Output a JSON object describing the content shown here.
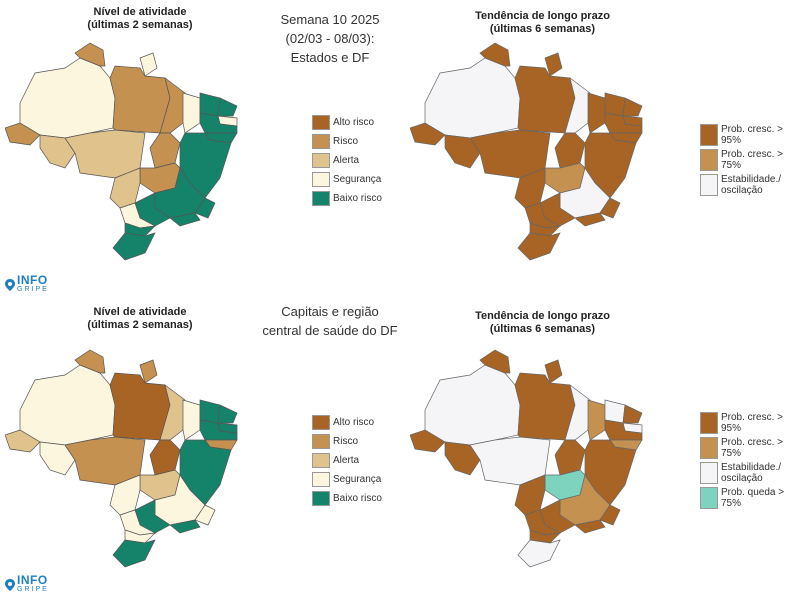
{
  "center": {
    "week_title_line1": "Semana 10 2025",
    "week_title_line2": "(02/03 - 08/03):",
    "week_title_line3": "Estados e DF",
    "bottom_title_line1": "Capitais e região",
    "bottom_title_line2": "central de saúde do DF"
  },
  "panels": {
    "top_left": {
      "title_line1": "Nível de atividade",
      "title_line2": "(últimas 2 semanas)"
    },
    "top_right": {
      "title_line1": "Tendência de longo prazo",
      "title_line2": "(últimas 6 semanas)"
    },
    "bottom_left": {
      "title_line1": "Nível de atividade",
      "title_line2": "(últimas 2 semanas)"
    },
    "bottom_right": {
      "title_line1": "Tendência de longo prazo",
      "title_line2": "(últimas 6 semanas)"
    }
  },
  "risk_legend": [
    {
      "label": "Alto risco",
      "color": "#a86424"
    },
    {
      "label": "Risco",
      "color": "#c49150"
    },
    {
      "label": "Alerta",
      "color": "#e0c28c"
    },
    {
      "label": "Segurança",
      "color": "#fdf6de"
    },
    {
      "label": "Baixo risco",
      "color": "#14836a"
    }
  ],
  "trend_legend_top": [
    {
      "label": "Prob. cresc. > 95%",
      "color": "#a86424"
    },
    {
      "label": "Prob. cresc. > 75%",
      "color": "#c49150"
    },
    {
      "label": "Estabilidade./ oscilação",
      "color": "#f5f5f7"
    }
  ],
  "trend_legend_bottom": [
    {
      "label": "Prob. cresc. > 95%",
      "color": "#a86424"
    },
    {
      "label": "Prob. cresc. > 75%",
      "color": "#c49150"
    },
    {
      "label": "Estabilidade./ oscilação",
      "color": "#f5f5f7"
    },
    {
      "label": "Prob. queda > 75%",
      "color": "#7dd3bd"
    }
  ],
  "logo": {
    "line1": "INFO",
    "line2": "GRIPE",
    "color": "#1e7fc2"
  }
}
